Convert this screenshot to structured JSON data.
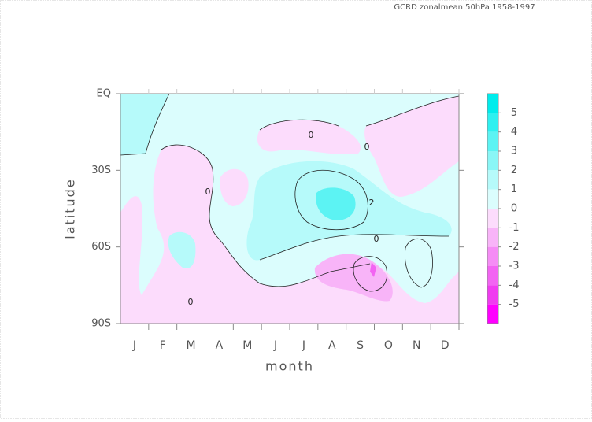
{
  "chart_data": {
    "type": "contour",
    "title": "GCRD   zonalmean   50hPa   1958-1997",
    "x_label": "month",
    "y_label": "latitude",
    "categories": [
      "J",
      "F",
      "M",
      "A",
      "M",
      "J",
      "J",
      "A",
      "S",
      "O",
      "N",
      "D"
    ],
    "ylim": [
      0,
      -90
    ],
    "yticks": [
      {
        "value": 0,
        "label": "EQ"
      },
      {
        "value": -30,
        "label": "30S"
      },
      {
        "value": -60,
        "label": "60S"
      },
      {
        "value": -90,
        "label": "90S"
      }
    ],
    "contour_labels": [
      0,
      0,
      0,
      0,
      0,
      2
    ],
    "colorbar": {
      "levels": [
        5,
        4,
        3,
        2,
        1,
        0,
        -1,
        -2,
        -3,
        -4,
        -5
      ],
      "colors": [
        "#00ecec",
        "#2ef0f0",
        "#5cf3f3",
        "#8af6f6",
        "#b6fafa",
        "#dbfdfd",
        "#fcdcfc",
        "#f8b4f8",
        "#f58cf5",
        "#f264f2",
        "#f03cf0",
        "#ff00ff"
      ]
    }
  }
}
